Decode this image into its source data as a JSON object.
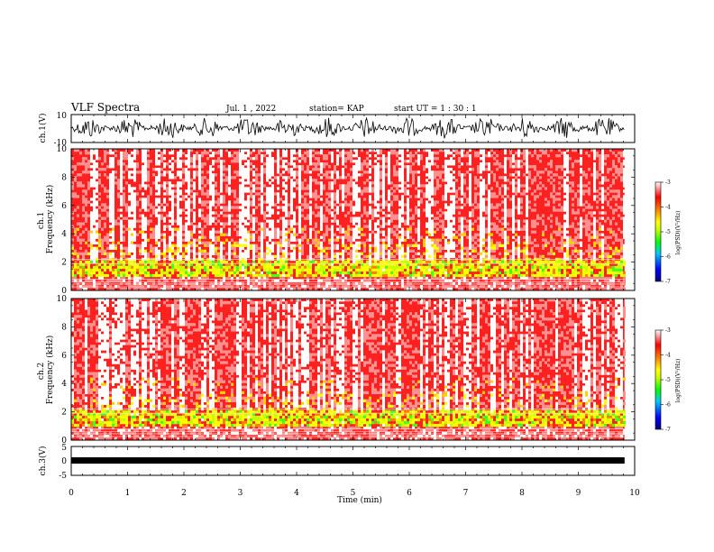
{
  "chart_data": {
    "type": "heatmap",
    "title": "VLF Spectra",
    "date": "Jul. 1 , 2022",
    "station": "station= KAP",
    "start": "start UT = 1 : 30 : 1",
    "xlabel": "Time (min)",
    "xlim": [
      0,
      10
    ],
    "xticks": [
      "0",
      "1",
      "2",
      "3",
      "4",
      "5",
      "6",
      "7",
      "8",
      "9",
      "10"
    ],
    "data_end_min": 9.82,
    "panels": [
      {
        "id": "ch1-waveform",
        "type": "line",
        "ylabel": "ch.1(V)",
        "ylim": [
          -10,
          10
        ],
        "yticks": [
          "10",
          "-10"
        ]
      },
      {
        "id": "ch1-spectrogram",
        "type": "heatmap",
        "ylabel": "ch.1 Frequency (kHz)",
        "ylim": [
          0,
          10
        ],
        "yticks": [
          "0",
          "2",
          "4",
          "6",
          "8",
          "10"
        ],
        "colorbar": {
          "label": "log(PSD)(V²/Hz)",
          "range": [
            -7,
            -3
          ],
          "ticks": [
            "-3",
            "-4",
            "-5",
            "-6",
            "-7"
          ]
        }
      },
      {
        "id": "ch2-spectrogram",
        "type": "heatmap",
        "ylabel": "ch.2 Frequency (kHz)",
        "ylim": [
          0,
          10
        ],
        "yticks": [
          "0",
          "2",
          "4",
          "6",
          "8",
          "10"
        ],
        "colorbar": {
          "label": "log(PSD)(V²/Hz)",
          "range": [
            -7,
            -3
          ],
          "ticks": [
            "-3",
            "-4",
            "-5",
            "-6",
            "-7"
          ]
        }
      },
      {
        "id": "ch3-waveform",
        "type": "line",
        "ylabel": "ch.3(V)",
        "ylim": [
          -5,
          5
        ],
        "yticks": [
          "5",
          "0",
          "-5"
        ]
      }
    ],
    "colormap": [
      "#000080",
      "#0000ff",
      "#00c8ff",
      "#00ff00",
      "#c8ff00",
      "#ffff00",
      "#ff8000",
      "#ff0000",
      "#ffffff"
    ]
  }
}
